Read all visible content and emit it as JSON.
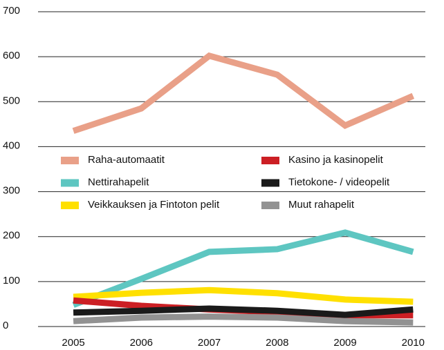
{
  "chart_data": {
    "type": "line",
    "x": [
      2005,
      2006,
      2007,
      2008,
      2009,
      2010
    ],
    "series": [
      {
        "name": "Raha-automaatit",
        "color": "#e9a088",
        "values": [
          435,
          485,
          602,
          560,
          447,
          513
        ]
      },
      {
        "name": "Kasino ja kasinopelit",
        "color": "#cc1f24",
        "values": [
          58,
          46,
          38,
          32,
          25,
          25
        ]
      },
      {
        "name": "Nettirahapelit",
        "color": "#5ec6c1",
        "values": [
          48,
          106,
          166,
          172,
          209,
          166
        ]
      },
      {
        "name": "Tietokone- / videopelit",
        "color": "#1a1a1a",
        "values": [
          31,
          35,
          40,
          35,
          26,
          38
        ]
      },
      {
        "name": "Veikkauksen ja Fintoton pelit",
        "color": "#ffe000",
        "values": [
          66,
          75,
          81,
          74,
          60,
          55
        ]
      },
      {
        "name": "Muut rahapelit",
        "color": "#929292",
        "values": [
          12,
          20,
          22,
          20,
          12,
          9
        ]
      }
    ],
    "xlim": [
      2004.48,
      2010.18
    ],
    "xticks": [
      2005,
      2006,
      2007,
      2008,
      2009,
      2010
    ],
    "ylim": [
      0,
      700
    ],
    "yticks": [
      0,
      100,
      200,
      300,
      400,
      500,
      600,
      700
    ],
    "grid": true
  }
}
